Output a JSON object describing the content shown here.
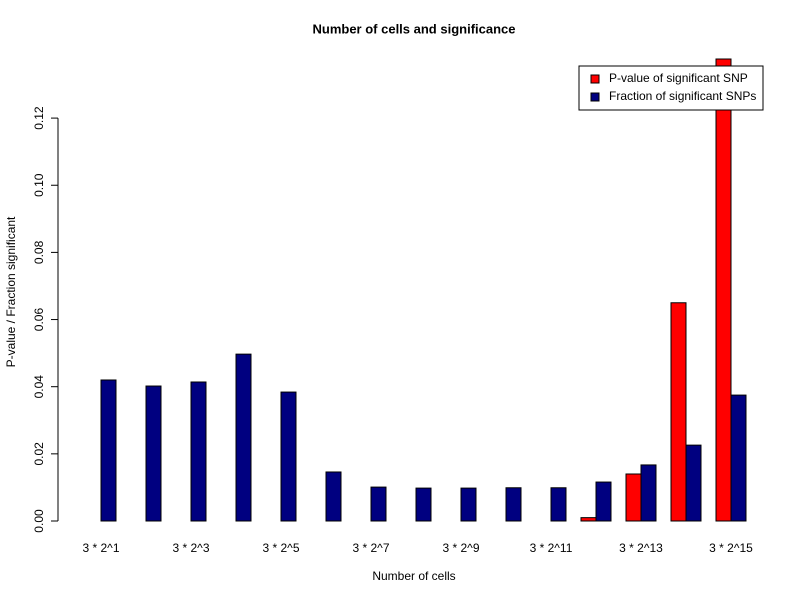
{
  "chart_data": {
    "type": "bar",
    "title": "Number of cells and significance",
    "x_label": "Number of cells",
    "y_label": "P-value / Fraction significant",
    "categories": [
      "3 * 2^1",
      null,
      "3 * 2^3",
      null,
      "3 * 2^5",
      null,
      "3 * 2^7",
      null,
      "3 * 2^9",
      null,
      "3 * 2^11",
      null,
      "3 * 2^13",
      null,
      "3 * 2^15"
    ],
    "series": [
      {
        "name": "P-value of significant SNP",
        "color": "#ff0000",
        "values": [
          0,
          0,
          0,
          0,
          0,
          0,
          0,
          0,
          0,
          0,
          0,
          0.001,
          0.014,
          0.065,
          0.1376
        ]
      },
      {
        "name": "Fraction of significant SNPs",
        "color": "#000080",
        "values": [
          0.042,
          0.0402,
          0.0414,
          0.0497,
          0.0384,
          0.0146,
          0.0101,
          0.0098,
          0.0098,
          0.0099,
          0.0099,
          0.0116,
          0.0167,
          0.0226,
          0.0375
        ]
      }
    ],
    "ylim": [
      0,
      0.1376
    ],
    "yticks": [
      {
        "value": 0,
        "label": "0.00"
      },
      {
        "value": 0.02,
        "label": "0.02"
      },
      {
        "value": 0.04,
        "label": "0.04"
      },
      {
        "value": 0.06,
        "label": "0.06"
      },
      {
        "value": 0.08,
        "label": "0.08"
      },
      {
        "value": 0.1,
        "label": "0.10"
      },
      {
        "value": 0.12,
        "label": "0.12"
      }
    ],
    "legend": "top-right"
  }
}
